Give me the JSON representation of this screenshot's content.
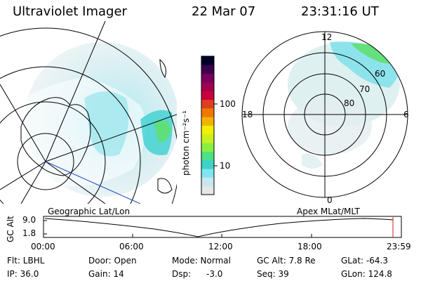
{
  "header": {
    "instrument": "Ultraviolet Imager",
    "date": "22 Mar 07",
    "time": "23:31:16 UT"
  },
  "colorbar": {
    "label": "photon cm⁻²s⁻¹",
    "ticks": [
      "100",
      "10"
    ],
    "colors": [
      "#e6e6e6",
      "#c8e6f0",
      "#7fe6f0",
      "#3cd2c8",
      "#4fe08a",
      "#8af040",
      "#c8f020",
      "#f0f000",
      "#f0b400",
      "#f07800",
      "#e03c1e",
      "#c8003c",
      "#a00050",
      "#78005a",
      "#3c0050",
      "#000028"
    ]
  },
  "left_map": {
    "projection_label": "Geographic Lat/Lon"
  },
  "right_map": {
    "projection_label": "Apex MLat/MLT",
    "mlt_labels": {
      "top": "12",
      "bottom": "0",
      "left": "18",
      "right": "6"
    },
    "mlat_labels": [
      "60",
      "70",
      "80"
    ]
  },
  "altitude_strip": {
    "ylabel": "GC Alt",
    "yticks": [
      "9.0",
      "1.8"
    ],
    "xticks": [
      "00:00",
      "06:00",
      "12:00",
      "18:00",
      "23:59"
    ]
  },
  "info": {
    "filter": "Flt: LBHL",
    "ip": "IP: 36.0",
    "door": "Door: Open",
    "gain": "Gain: 14",
    "mode": "Mode: Normal",
    "dsp": "Dsp:",
    "dsp_value": "-3.0",
    "gc_alt": "GC Alt: 7.8 Re",
    "seq": "Seq: 39",
    "glat": "GLat: -64.3",
    "glon": "GLon: 124.8"
  }
}
